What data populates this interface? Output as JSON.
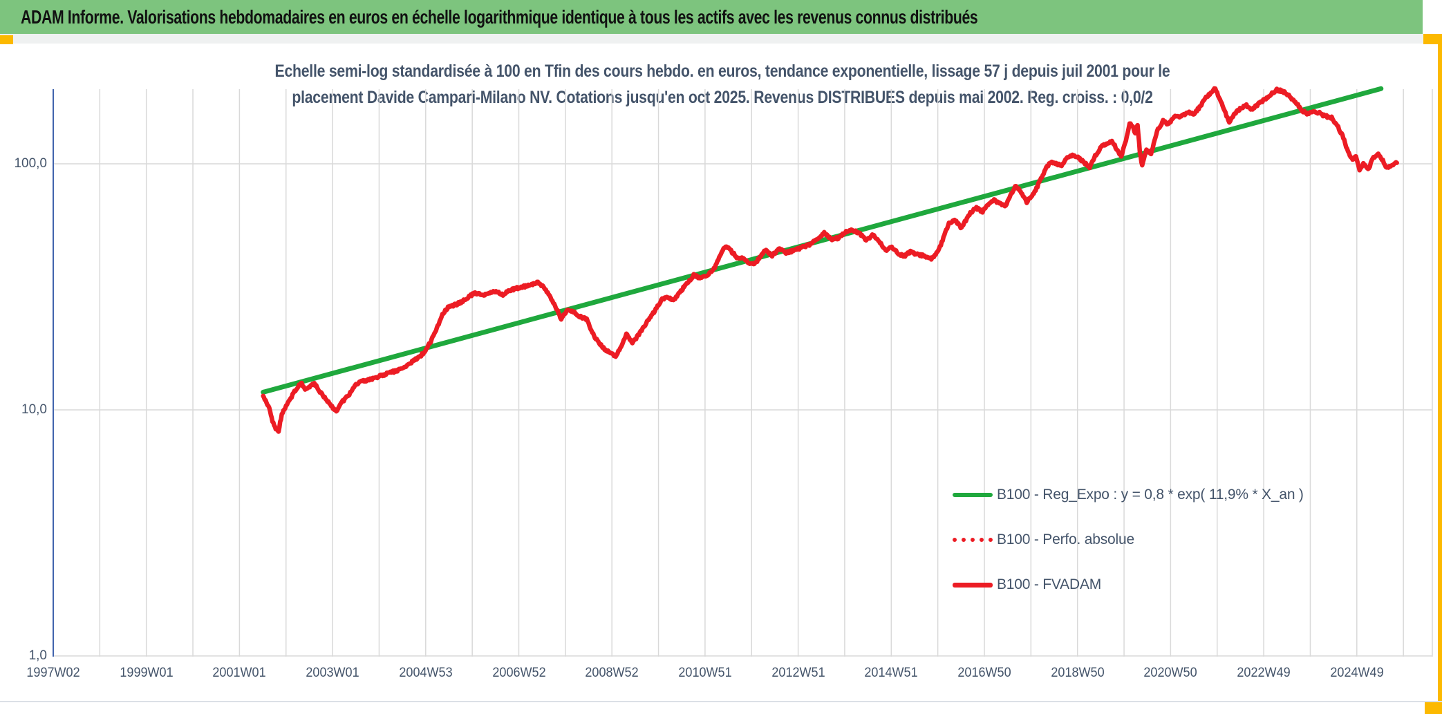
{
  "title": "ADAM Informe. Valorisations hebdomadaires en euros en échelle logarithmique identique à tous les actifs avec les revenus connus distribués",
  "subtitle": {
    "line1": "Echelle semi-log standardisée à 100 en Tfin des cours hebdo. en euros, tendance exponentielle, lissage 57 j depuis juil 2001 pour le",
    "line2": "placement Davide Campari-Milano NV. Cotations jusqu'en oct 2025. Revenus DISTRIBUES depuis mai 2002. Reg. croiss. : 0,0/2"
  },
  "legend": {
    "items": [
      {
        "label": "B100 - Reg_Expo : y = 0,8 * exp( 11,9% * X_an )",
        "swatch": "green-solid-line"
      },
      {
        "label": "B100 - Perfo. absolue",
        "swatch": "red-dotted-line"
      },
      {
        "label": "B100 - FVADAM",
        "swatch": "red-solid-line"
      }
    ]
  },
  "colors": {
    "title_bg": "#7dc47e",
    "accent_gold": "#fcb900",
    "series_green": "#1fa83d",
    "series_red": "#ec1c24",
    "axis_text": "#44546a",
    "grid": "#d9d9d9",
    "axis_line": "#4063ad"
  },
  "chart_data": {
    "type": "line",
    "title": "Echelle semi-log standardisée à 100 en Tfin des cours hebdo. en euros, tendance exponentielle, lissage 57 j depuis juil 2001 pour le placement Davide Campari-Milano NV. Cotations jusqu'en oct 2025. Revenus DISTRIBUES depuis mai 2002. Reg. croiss. : 0,0/2",
    "xlabel": "",
    "ylabel": "",
    "grid": true,
    "legend_position": "inside-lower-right",
    "x_axis": {
      "start_year": 1997.04,
      "years_per_tick": 2,
      "tick_labels": [
        "1997W02",
        "1999W01",
        "2001W01",
        "2003W01",
        "2004W53",
        "2006W52",
        "2008W52",
        "2010W51",
        "2012W51",
        "2014W51",
        "2016W50",
        "2018W50",
        "2020W50",
        "2022W49",
        "2024W49"
      ]
    },
    "y_axis": {
      "scale": "log",
      "labels": [
        {
          "text": "100,0",
          "value": 100
        },
        {
          "text": "10,0",
          "value": 10
        },
        {
          "text": "1,0",
          "value": 1
        }
      ],
      "ylim": [
        1,
        230
      ]
    },
    "series": [
      {
        "name": "B100 - Reg_Expo : y = 0,8 * exp( 11,9% * X_an )",
        "color": "#1fa83d",
        "style": "solid",
        "width": 7,
        "points": [
          [
            2001.55,
            11.8
          ],
          [
            2025.56,
            202
          ]
        ]
      },
      {
        "name": "B100 - Perfo. absolue",
        "color": "#ec1c24",
        "style": "dotted",
        "width": 5,
        "coincides_with": "B100 - FVADAM"
      },
      {
        "name": "B100 - FVADAM",
        "color": "#ec1c24",
        "style": "solid",
        "width": 6.5,
        "points": [
          [
            2001.55,
            11.4
          ],
          [
            2001.62,
            10.7
          ],
          [
            2001.68,
            10.2
          ],
          [
            2001.75,
            9.0
          ],
          [
            2001.82,
            8.4
          ],
          [
            2001.88,
            8.2
          ],
          [
            2001.95,
            9.6
          ],
          [
            2002.02,
            10.2
          ],
          [
            2002.1,
            10.8
          ],
          [
            2002.18,
            11.5
          ],
          [
            2002.28,
            12.3
          ],
          [
            2002.36,
            12.9
          ],
          [
            2002.45,
            12.2
          ],
          [
            2002.55,
            12.5
          ],
          [
            2002.65,
            12.8
          ],
          [
            2002.75,
            12.0
          ],
          [
            2002.85,
            11.3
          ],
          [
            2002.95,
            10.8
          ],
          [
            2003.05,
            10.2
          ],
          [
            2003.12,
            9.9
          ],
          [
            2003.22,
            10.6
          ],
          [
            2003.32,
            11.2
          ],
          [
            2003.42,
            11.7
          ],
          [
            2003.52,
            12.6
          ],
          [
            2003.62,
            13.0
          ],
          [
            2003.72,
            13.1
          ],
          [
            2003.85,
            13.3
          ],
          [
            2004.0,
            13.6
          ],
          [
            2004.15,
            13.9
          ],
          [
            2004.3,
            14.2
          ],
          [
            2004.45,
            14.5
          ],
          [
            2004.6,
            15.0
          ],
          [
            2004.75,
            15.7
          ],
          [
            2004.9,
            16.4
          ],
          [
            2005.02,
            17.2
          ],
          [
            2005.15,
            19.0
          ],
          [
            2005.28,
            21.5
          ],
          [
            2005.4,
            24.5
          ],
          [
            2005.52,
            26.0
          ],
          [
            2005.65,
            26.6
          ],
          [
            2005.8,
            27.4
          ],
          [
            2005.95,
            28.6
          ],
          [
            2006.1,
            30.0
          ],
          [
            2006.25,
            29.2
          ],
          [
            2006.4,
            29.8
          ],
          [
            2006.55,
            30.3
          ],
          [
            2006.7,
            29.4
          ],
          [
            2006.85,
            30.6
          ],
          [
            2007.0,
            31.2
          ],
          [
            2007.15,
            31.7
          ],
          [
            2007.3,
            32.1
          ],
          [
            2007.45,
            33.0
          ],
          [
            2007.58,
            31.5
          ],
          [
            2007.7,
            29.0
          ],
          [
            2007.82,
            26.5
          ],
          [
            2007.95,
            23.5
          ],
          [
            2008.08,
            25.5
          ],
          [
            2008.2,
            25.0
          ],
          [
            2008.35,
            24.0
          ],
          [
            2008.5,
            23.3
          ],
          [
            2008.62,
            20.5
          ],
          [
            2008.75,
            18.8
          ],
          [
            2008.9,
            17.5
          ],
          [
            2009.05,
            16.8
          ],
          [
            2009.12,
            16.5
          ],
          [
            2009.22,
            17.8
          ],
          [
            2009.35,
            20.3
          ],
          [
            2009.48,
            18.8
          ],
          [
            2009.6,
            20.0
          ],
          [
            2009.72,
            21.8
          ],
          [
            2009.85,
            23.5
          ],
          [
            2010.0,
            26.0
          ],
          [
            2010.12,
            28.3
          ],
          [
            2010.25,
            28.6
          ],
          [
            2010.38,
            28.0
          ],
          [
            2010.5,
            30.2
          ],
          [
            2010.65,
            32.5
          ],
          [
            2010.8,
            35.3
          ],
          [
            2010.95,
            34.3
          ],
          [
            2011.1,
            35.2
          ],
          [
            2011.25,
            38.0
          ],
          [
            2011.38,
            43.0
          ],
          [
            2011.48,
            46.5
          ],
          [
            2011.6,
            44.2
          ],
          [
            2011.72,
            41.8
          ],
          [
            2011.85,
            41.2
          ],
          [
            2012.0,
            39.5
          ],
          [
            2012.1,
            38.8
          ],
          [
            2012.22,
            42.0
          ],
          [
            2012.35,
            44.6
          ],
          [
            2012.48,
            42.2
          ],
          [
            2012.62,
            45.2
          ],
          [
            2012.78,
            43.5
          ],
          [
            2012.95,
            44.4
          ],
          [
            2013.1,
            45.6
          ],
          [
            2013.28,
            47.0
          ],
          [
            2013.45,
            49.5
          ],
          [
            2013.6,
            52.3
          ],
          [
            2013.75,
            49.4
          ],
          [
            2013.9,
            50.0
          ],
          [
            2014.05,
            52.8
          ],
          [
            2014.2,
            53.8
          ],
          [
            2014.35,
            52.5
          ],
          [
            2014.5,
            48.8
          ],
          [
            2014.65,
            51.6
          ],
          [
            2014.8,
            48.0
          ],
          [
            2014.92,
            44.6
          ],
          [
            2015.05,
            46.0
          ],
          [
            2015.18,
            43.5
          ],
          [
            2015.3,
            42.0
          ],
          [
            2015.45,
            43.8
          ],
          [
            2015.6,
            42.8
          ],
          [
            2015.75,
            42.2
          ],
          [
            2015.9,
            41.0
          ],
          [
            2016.05,
            44.0
          ],
          [
            2016.18,
            51.0
          ],
          [
            2016.28,
            57.4
          ],
          [
            2016.4,
            59.3
          ],
          [
            2016.55,
            54.9
          ],
          [
            2016.7,
            61.7
          ],
          [
            2016.85,
            66.5
          ],
          [
            2017.0,
            63.8
          ],
          [
            2017.12,
            68.5
          ],
          [
            2017.25,
            71.0
          ],
          [
            2017.38,
            69.0
          ],
          [
            2017.5,
            67.4
          ],
          [
            2017.62,
            76.0
          ],
          [
            2017.72,
            81.5
          ],
          [
            2017.85,
            76.0
          ],
          [
            2017.95,
            70.0
          ],
          [
            2018.1,
            75.5
          ],
          [
            2018.22,
            84.0
          ],
          [
            2018.35,
            95.0
          ],
          [
            2018.45,
            101.5
          ],
          [
            2018.58,
            100.0
          ],
          [
            2018.7,
            98.0
          ],
          [
            2018.82,
            106.0
          ],
          [
            2018.95,
            108.0
          ],
          [
            2019.05,
            106.6
          ],
          [
            2019.18,
            101.5
          ],
          [
            2019.3,
            96.4
          ],
          [
            2019.42,
            108.0
          ],
          [
            2019.55,
            117.0
          ],
          [
            2019.68,
            121.0
          ],
          [
            2019.78,
            124.0
          ],
          [
            2019.88,
            115.0
          ],
          [
            2019.98,
            107.0
          ],
          [
            2020.08,
            125.0
          ],
          [
            2020.16,
            146.5
          ],
          [
            2020.22,
            143.0
          ],
          [
            2020.28,
            133.0
          ],
          [
            2020.33,
            144.6
          ],
          [
            2020.38,
            112.0
          ],
          [
            2020.43,
            98.0
          ],
          [
            2020.52,
            114.0
          ],
          [
            2020.62,
            110.0
          ],
          [
            2020.75,
            137.0
          ],
          [
            2020.88,
            149.0
          ],
          [
            2021.0,
            144.6
          ],
          [
            2021.12,
            156.5
          ],
          [
            2021.25,
            154.4
          ],
          [
            2021.4,
            162.6
          ],
          [
            2021.55,
            159.5
          ],
          [
            2021.68,
            172.0
          ],
          [
            2021.8,
            186.0
          ],
          [
            2021.92,
            196.0
          ],
          [
            2022.0,
            202.5
          ],
          [
            2022.1,
            182.0
          ],
          [
            2022.2,
            165.0
          ],
          [
            2022.3,
            147.0
          ],
          [
            2022.42,
            160.0
          ],
          [
            2022.55,
            168.0
          ],
          [
            2022.65,
            173.5
          ],
          [
            2022.78,
            167.0
          ],
          [
            2022.9,
            173.5
          ],
          [
            2023.05,
            182.0
          ],
          [
            2023.2,
            192.0
          ],
          [
            2023.32,
            199.8
          ],
          [
            2023.45,
            197.0
          ],
          [
            2023.58,
            190.0
          ],
          [
            2023.72,
            178.0
          ],
          [
            2023.85,
            166.0
          ],
          [
            2023.95,
            160.0
          ],
          [
            2024.08,
            162.6
          ],
          [
            2024.2,
            162.0
          ],
          [
            2024.35,
            156.5
          ],
          [
            2024.5,
            154.0
          ],
          [
            2024.62,
            143.0
          ],
          [
            2024.75,
            128.0
          ],
          [
            2024.85,
            112.0
          ],
          [
            2024.95,
            103.0
          ],
          [
            2025.02,
            107.0
          ],
          [
            2025.1,
            94.0
          ],
          [
            2025.18,
            100.0
          ],
          [
            2025.28,
            94.5
          ],
          [
            2025.38,
            104.5
          ],
          [
            2025.48,
            110.0
          ],
          [
            2025.58,
            104.5
          ],
          [
            2025.68,
            96.4
          ],
          [
            2025.78,
            99.0
          ],
          [
            2025.9,
            100.9
          ]
        ]
      }
    ]
  }
}
